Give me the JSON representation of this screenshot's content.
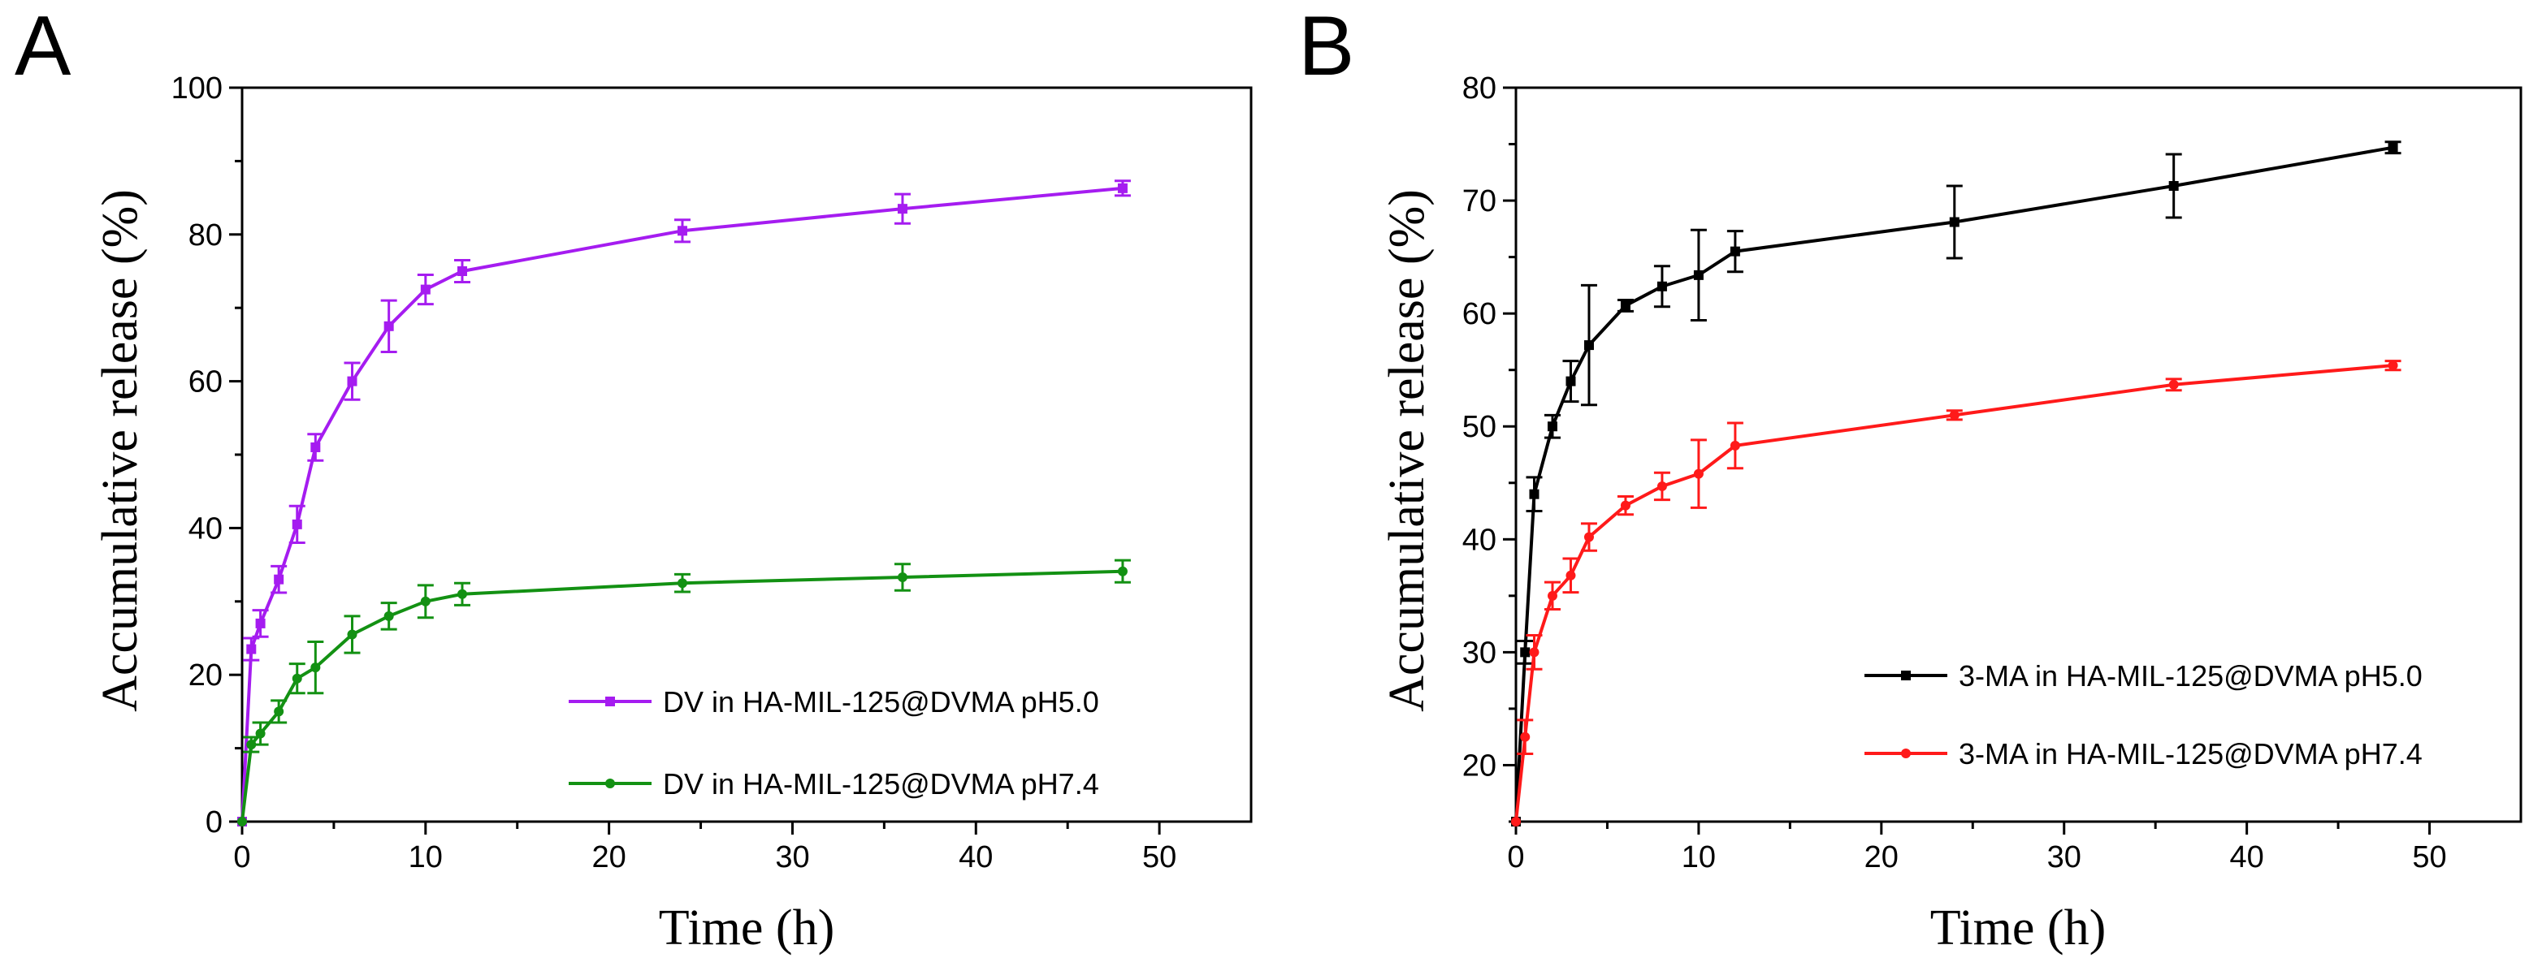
{
  "chart_data": [
    {
      "type": "line",
      "panel_label": "A",
      "xlabel": "Time (h)",
      "ylabel": "Accumulative  release (%)",
      "xlim": [
        0,
        55
      ],
      "ylim": [
        0,
        100
      ],
      "x_ticks": [
        0,
        10,
        20,
        30,
        40,
        50
      ],
      "y_ticks": [
        0,
        20,
        40,
        60,
        80,
        100
      ],
      "grid": false,
      "legend_position": "center-right",
      "series": [
        {
          "name": "DV in HA-MIL-125@DVMA pH5.0",
          "color": "#a51cf0",
          "marker": "square",
          "x": [
            0,
            0.5,
            1,
            2,
            3,
            4,
            6,
            8,
            10,
            12,
            24,
            36,
            48
          ],
          "y": [
            0,
            23.5,
            27,
            33,
            40.5,
            51,
            60,
            67.5,
            72.5,
            75,
            80.5,
            83.5,
            86.3
          ],
          "err": [
            0,
            1.5,
            1.8,
            1.8,
            2.5,
            1.8,
            2.5,
            3.5,
            2.0,
            1.5,
            1.5,
            2.0,
            1.0
          ]
        },
        {
          "name": "DV in HA-MIL-125@DVMA pH7.4",
          "color": "#139113",
          "marker": "circle",
          "x": [
            0,
            0.5,
            1,
            2,
            3,
            4,
            6,
            8,
            10,
            12,
            24,
            36,
            48
          ],
          "y": [
            0,
            10.5,
            12,
            15,
            19.5,
            21,
            25.5,
            28,
            30,
            31,
            32.5,
            33.3,
            34.1
          ],
          "err": [
            0,
            1.0,
            1.5,
            1.5,
            2.0,
            3.5,
            2.5,
            1.8,
            2.2,
            1.5,
            1.2,
            1.8,
            1.5
          ]
        }
      ]
    },
    {
      "type": "line",
      "panel_label": "B",
      "xlabel": "Time (h)",
      "ylabel": "Accumulative  release (%)",
      "xlim": [
        0,
        55
      ],
      "ylim": [
        15,
        80
      ],
      "x_ticks": [
        0,
        10,
        20,
        30,
        40,
        50
      ],
      "y_ticks": [
        20,
        30,
        40,
        50,
        60,
        70,
        80
      ],
      "grid": false,
      "legend_position": "center-right",
      "series": [
        {
          "name": "3-MA in HA-MIL-125@DVMA pH5.0",
          "color": "#000000",
          "marker": "square",
          "x": [
            0,
            0.5,
            1,
            2,
            3,
            4,
            6,
            8,
            10,
            12,
            24,
            36,
            48
          ],
          "y": [
            15,
            30,
            44,
            50,
            54,
            57.2,
            60.7,
            62.4,
            63.4,
            65.5,
            68.1,
            71.3,
            74.7
          ],
          "err": [
            0,
            1.0,
            1.5,
            1.0,
            1.8,
            5.3,
            0.5,
            1.8,
            4.0,
            1.8,
            3.2,
            2.8,
            0.5
          ]
        },
        {
          "name": "3-MA in HA-MIL-125@DVMA pH7.4",
          "color": "#ff1a1a",
          "marker": "circle",
          "x": [
            0,
            0.5,
            1,
            2,
            3,
            4,
            6,
            8,
            10,
            12,
            24,
            36,
            48
          ],
          "y": [
            15,
            22.5,
            30,
            35,
            36.8,
            40.2,
            43,
            44.7,
            45.8,
            48.3,
            51,
            53.7,
            55.4
          ],
          "err": [
            0,
            1.5,
            1.5,
            1.2,
            1.5,
            1.2,
            0.8,
            1.2,
            3.0,
            2.0,
            0.4,
            0.5,
            0.4
          ]
        }
      ]
    }
  ]
}
